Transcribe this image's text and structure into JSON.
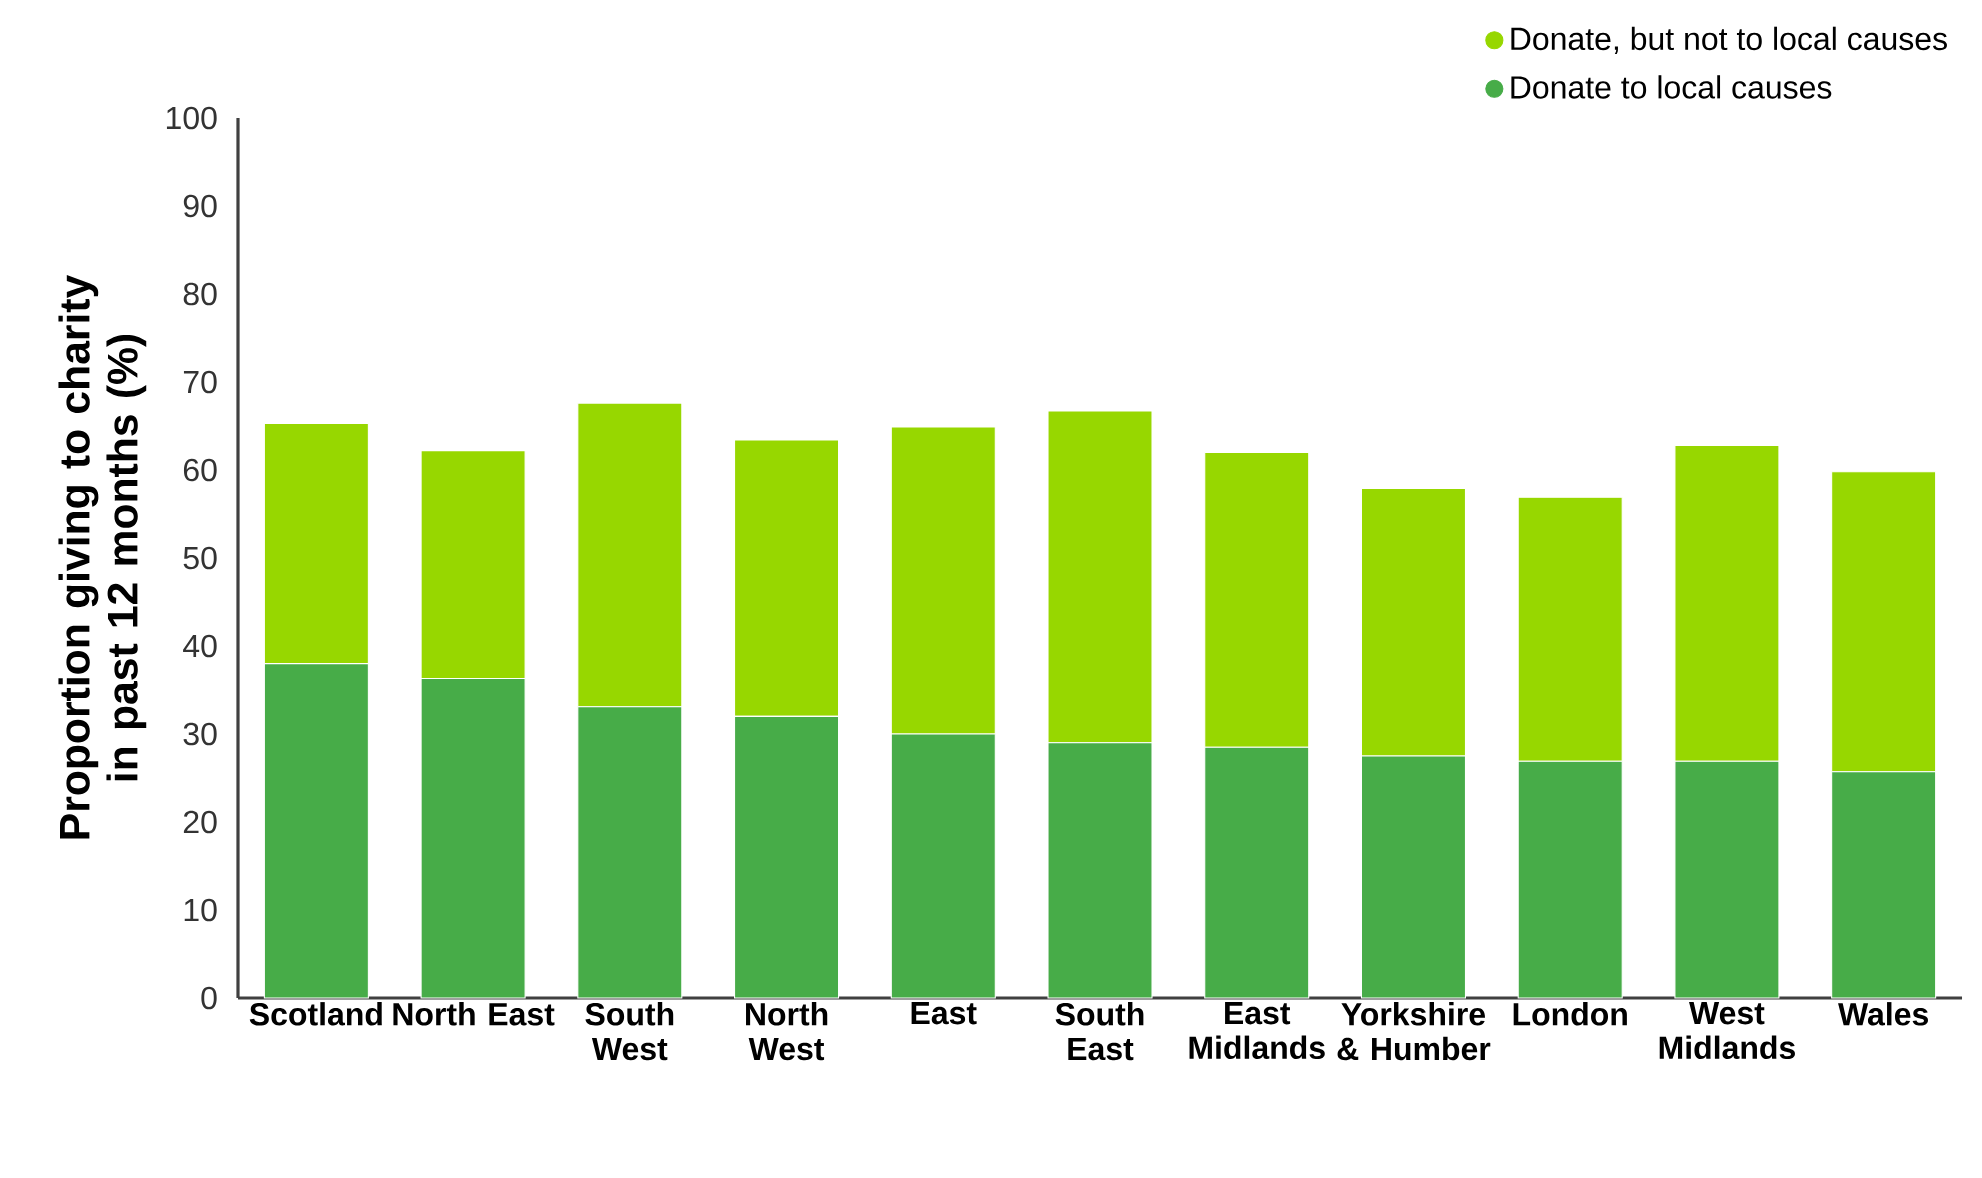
{
  "chart_data": {
    "type": "bar",
    "stacked": true,
    "ylabel": "Proportion giving to charity in past 12 months (%)",
    "categories": [
      "Scotland",
      "North East",
      "South West",
      "North West",
      "East",
      "South East",
      "East Midlands",
      "Yorkshire & Humber",
      "London",
      "West Midlands",
      "Wales"
    ],
    "series": [
      {
        "name": "Donate to local causes",
        "color": "#47ac48",
        "values": [
          38.0,
          36.3,
          33.1,
          32.0,
          30.0,
          29.0,
          28.5,
          27.5,
          26.9,
          26.9,
          25.7
        ]
      },
      {
        "name": "Donate, but not to local causes",
        "color": "#97d700",
        "values": [
          27.3,
          25.9,
          34.5,
          31.4,
          34.9,
          37.7,
          33.5,
          30.4,
          30.0,
          35.9,
          34.1
        ]
      }
    ],
    "ylim": [
      0,
      100
    ],
    "yticks": [
      0,
      10,
      20,
      30,
      40,
      50,
      60,
      70,
      80,
      90,
      100
    ],
    "grid": false,
    "legend": "top right"
  }
}
